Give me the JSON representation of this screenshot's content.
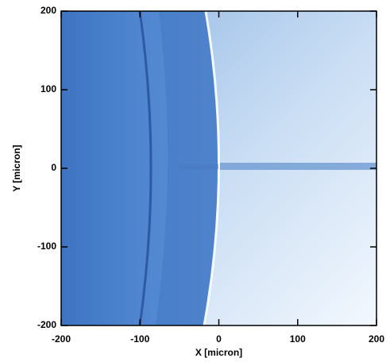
{
  "chart_data": {
    "type": "image",
    "x_label": "X [micron]",
    "y_label": "Y [micron]",
    "xlim": [
      -200,
      200
    ],
    "ylim": [
      -200,
      200
    ],
    "xticks": [
      -200,
      -100,
      0,
      100,
      200
    ],
    "yticks": [
      -200,
      -100,
      0,
      100,
      200
    ]
  }
}
